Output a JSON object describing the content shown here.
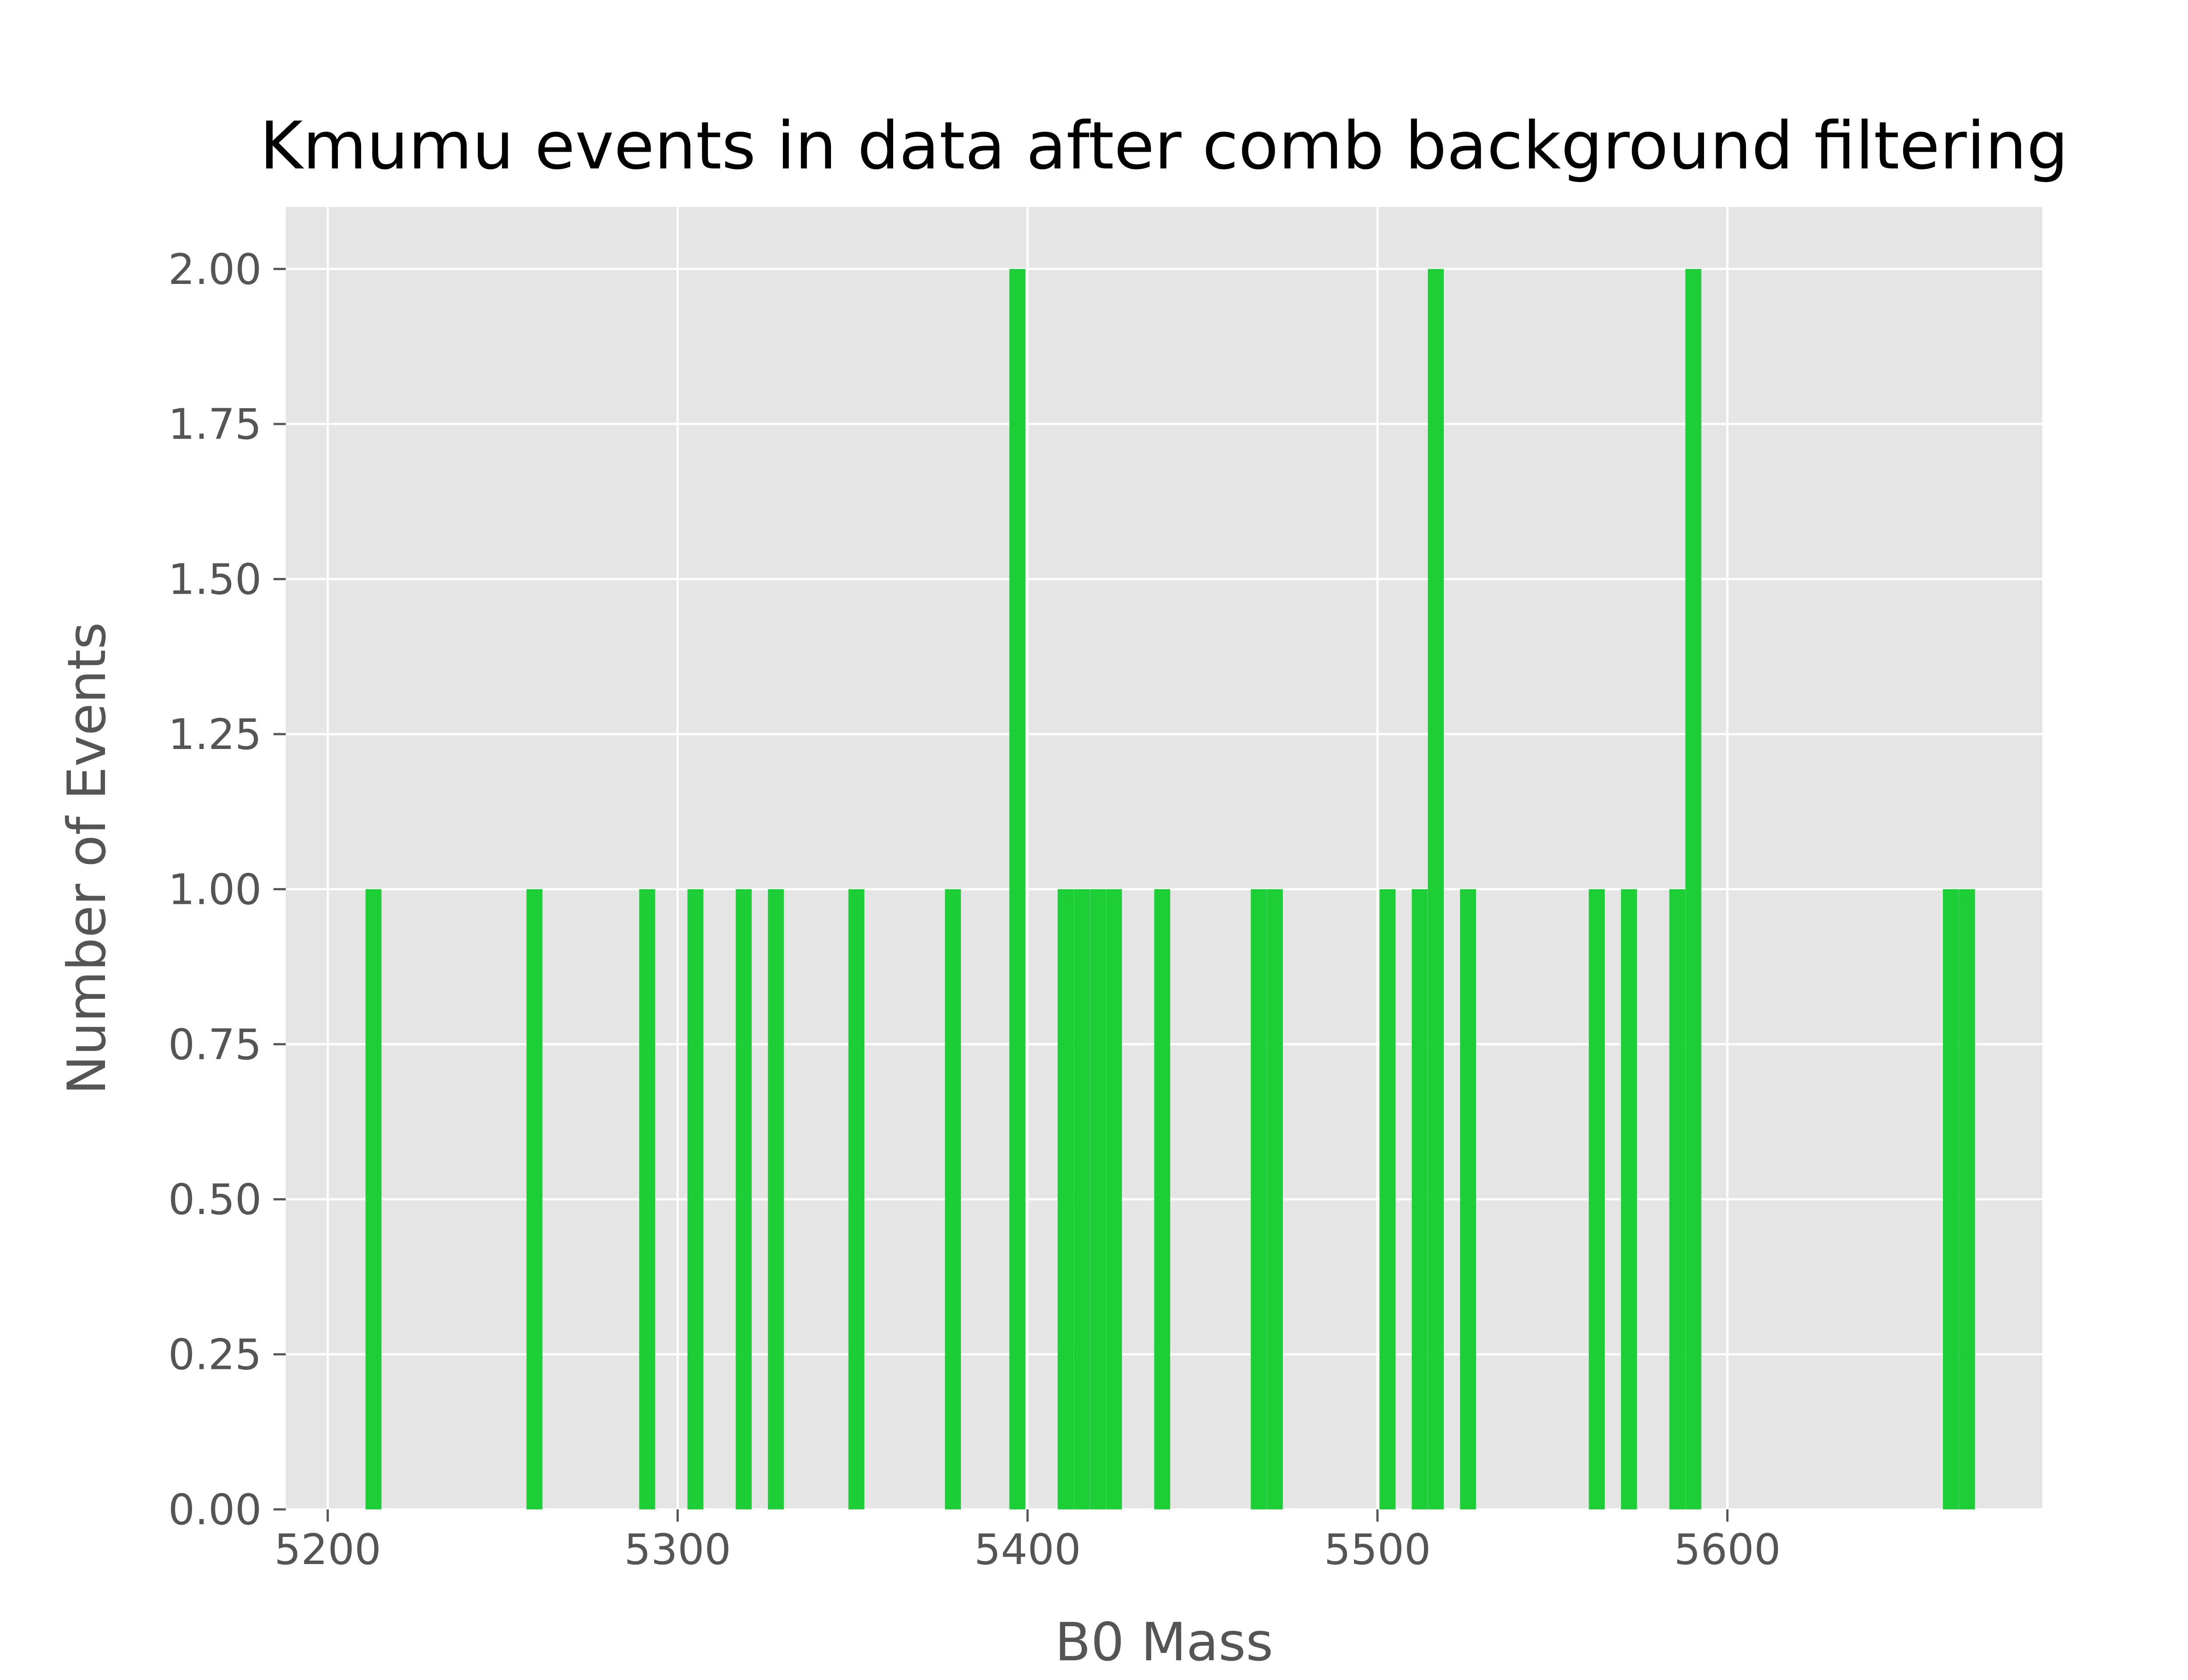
{
  "chart_data": {
    "type": "bar",
    "title": "Kmumu events in data after comb background filtering",
    "xlabel": "B0 Mass",
    "ylabel": "Number of Events",
    "xlim": [
      5188,
      5690
    ],
    "ylim": [
      0,
      2.1
    ],
    "bin_width": 4.5,
    "x_ticks": [
      5200,
      5300,
      5400,
      5500,
      5600
    ],
    "x_tick_labels": [
      "5200",
      "5300",
      "5400",
      "5500",
      "5600"
    ],
    "y_ticks": [
      0,
      0.25,
      0.5,
      0.75,
      1.0,
      1.25,
      1.5,
      1.75,
      2.0
    ],
    "y_tick_labels": [
      "0.00",
      "0.25",
      "0.50",
      "0.75",
      "1.00",
      "1.25",
      "1.50",
      "1.75",
      "2.00"
    ],
    "grid": true,
    "style": "ggplot",
    "background_color": "#e5e5e5",
    "bar_color": "#1ccf37",
    "bins": [
      {
        "x": 5210.8,
        "value": 1
      },
      {
        "x": 5256.8,
        "value": 1
      },
      {
        "x": 5289.0,
        "value": 1
      },
      {
        "x": 5302.8,
        "value": 1
      },
      {
        "x": 5316.6,
        "value": 1
      },
      {
        "x": 5325.8,
        "value": 1
      },
      {
        "x": 5348.8,
        "value": 1
      },
      {
        "x": 5376.4,
        "value": 1
      },
      {
        "x": 5394.8,
        "value": 2
      },
      {
        "x": 5408.6,
        "value": 1
      },
      {
        "x": 5413.2,
        "value": 1
      },
      {
        "x": 5417.8,
        "value": 1
      },
      {
        "x": 5422.4,
        "value": 1
      },
      {
        "x": 5436.2,
        "value": 1
      },
      {
        "x": 5463.8,
        "value": 1
      },
      {
        "x": 5468.4,
        "value": 1
      },
      {
        "x": 5500.6,
        "value": 1
      },
      {
        "x": 5509.8,
        "value": 1
      },
      {
        "x": 5514.4,
        "value": 2
      },
      {
        "x": 5523.6,
        "value": 1
      },
      {
        "x": 5560.4,
        "value": 1
      },
      {
        "x": 5569.6,
        "value": 1
      },
      {
        "x": 5583.4,
        "value": 1
      },
      {
        "x": 5588.0,
        "value": 2
      },
      {
        "x": 5661.6,
        "value": 1
      },
      {
        "x": 5666.2,
        "value": 1
      }
    ]
  }
}
